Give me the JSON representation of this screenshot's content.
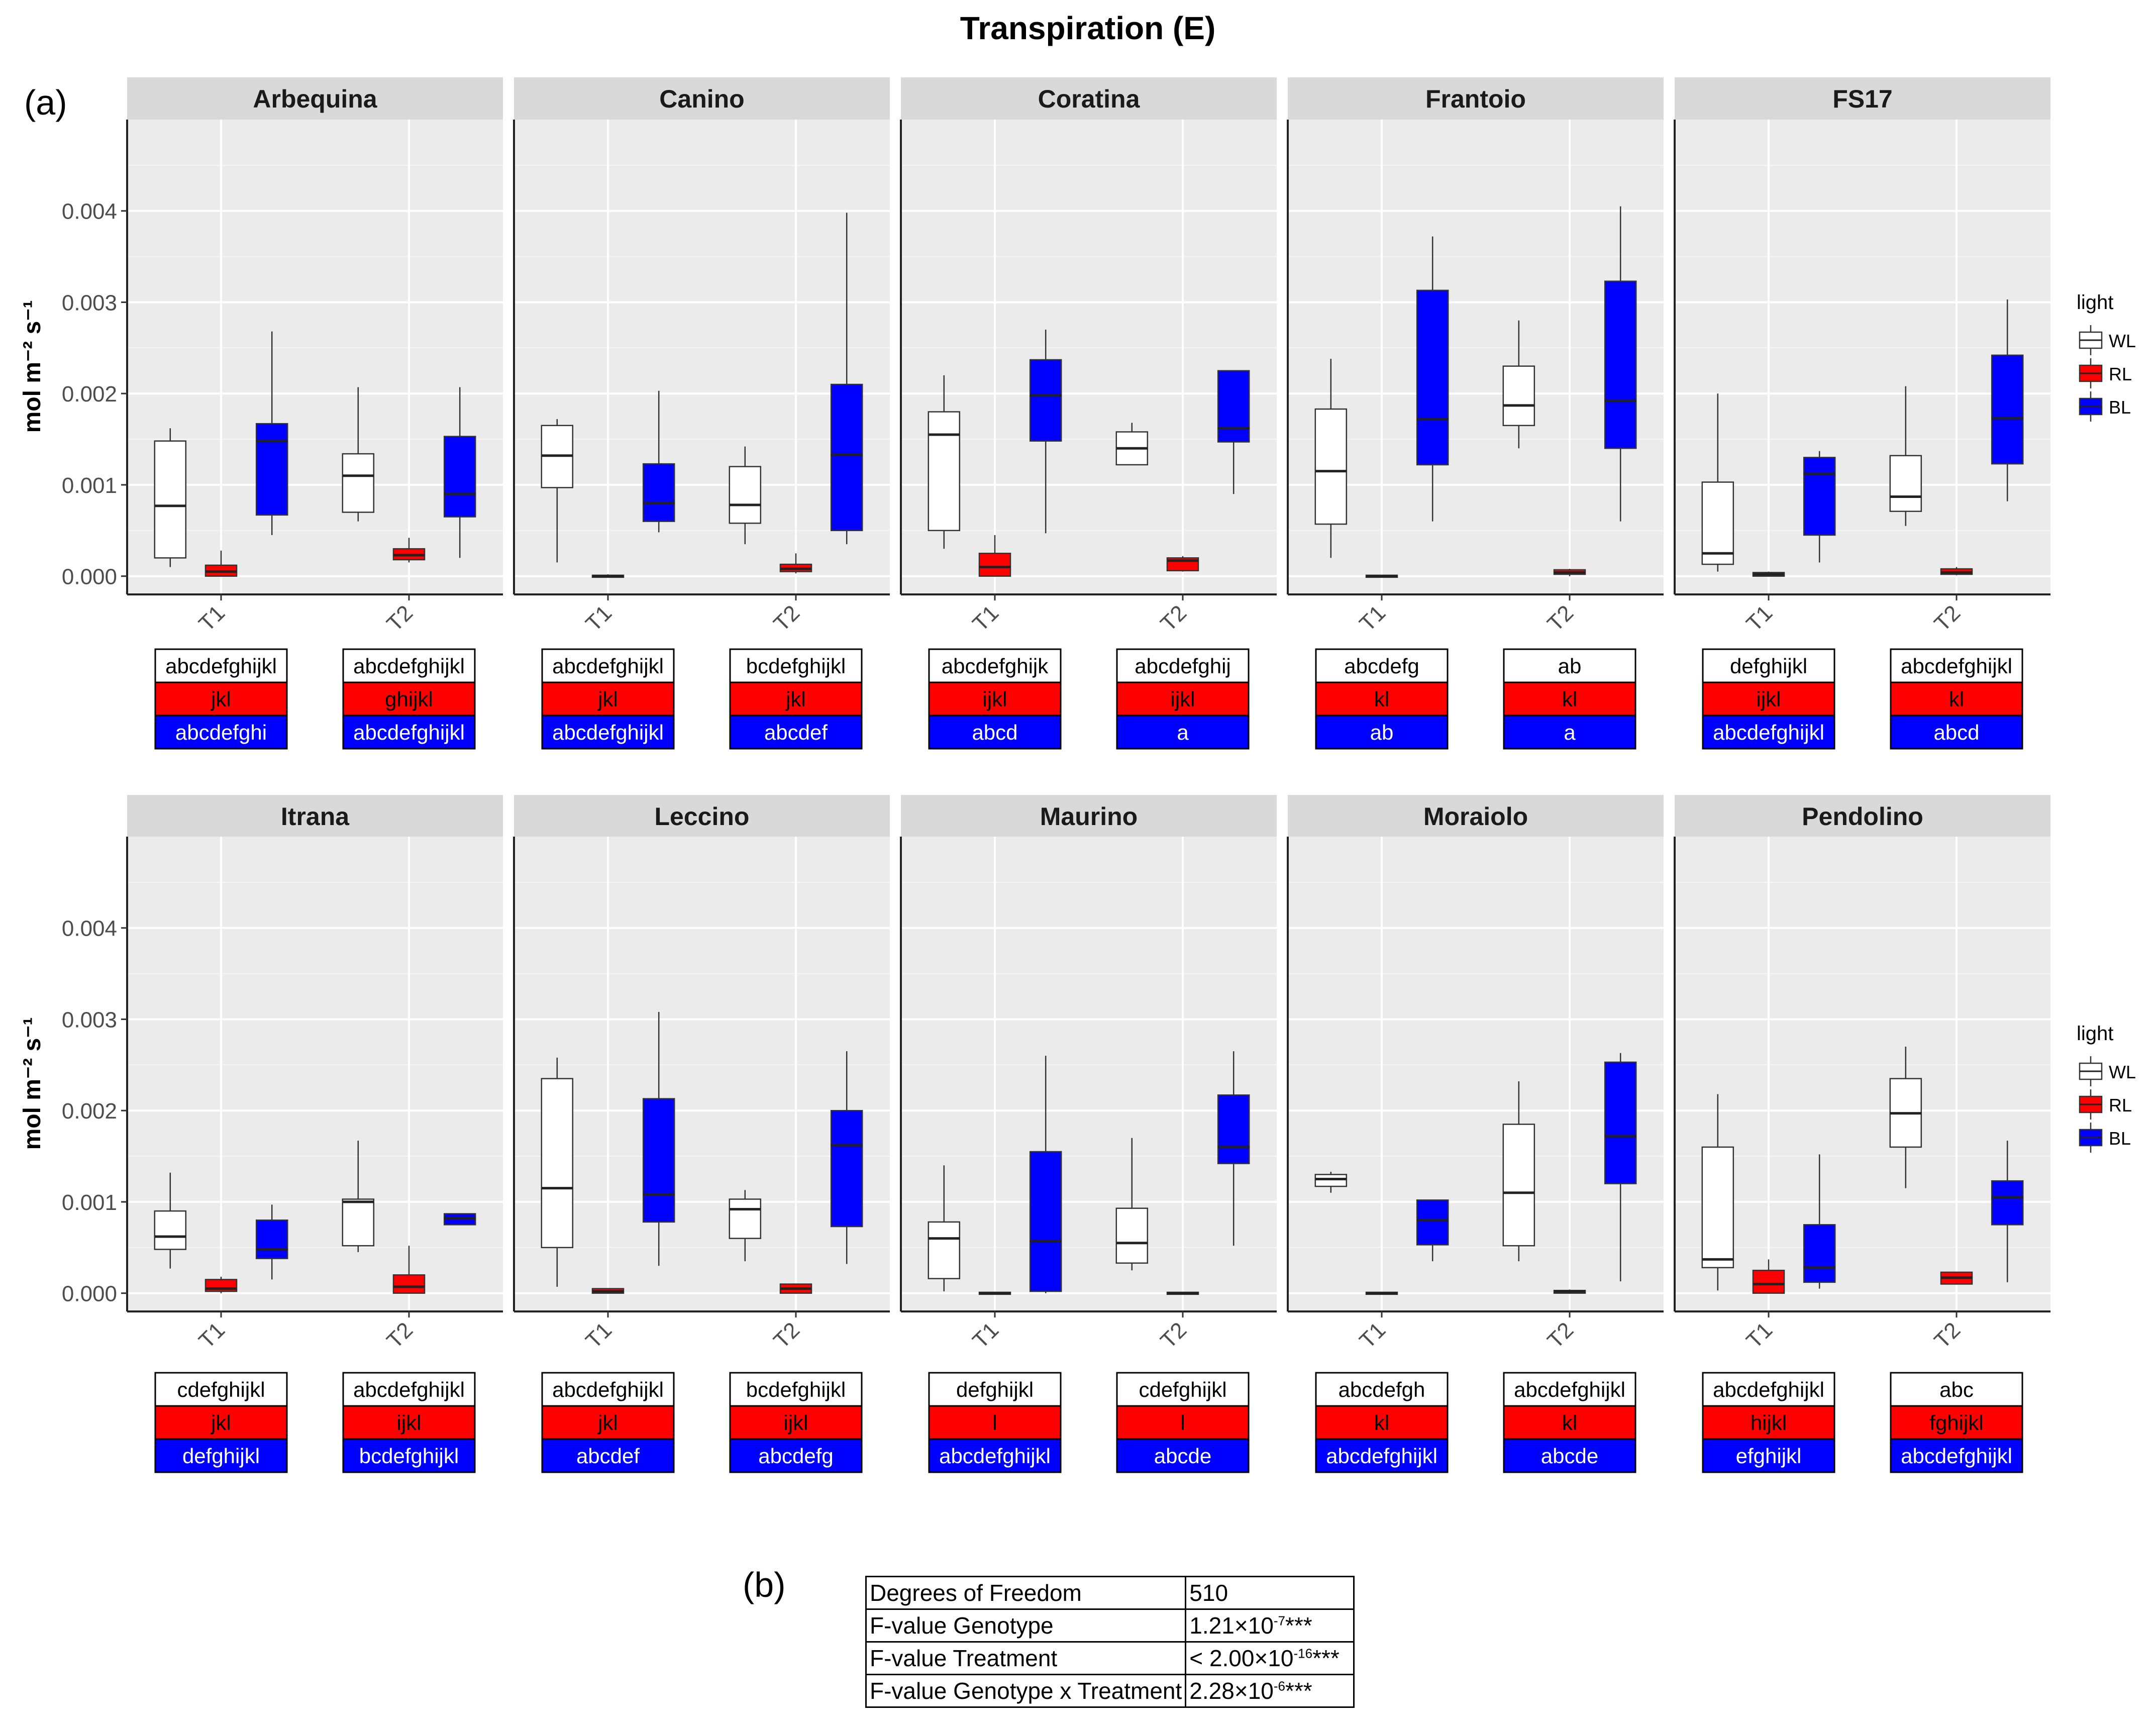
{
  "figure": {
    "title": "Transpiration (E)",
    "label_a": "(a)",
    "label_b": "(b)"
  },
  "colors": {
    "WL": "#ffffff",
    "RL": "#ff0000",
    "BL": "#0000ff",
    "panel_bg": "#ebebeb",
    "strip_bg": "#d9d9d9"
  },
  "chart_data": {
    "type": "boxplot",
    "ylabel": "mol m⁻² s⁻¹",
    "ylim": [
      -0.0002,
      0.005
    ],
    "yticks": [
      "0.000",
      "0.001",
      "0.002",
      "0.003",
      "0.004"
    ],
    "ytick_values": [
      0,
      0.001,
      0.002,
      0.003,
      0.004
    ],
    "x_categories": [
      "T1",
      "T2"
    ],
    "legend": {
      "title": "light",
      "entries": [
        "WL",
        "RL",
        "BL"
      ]
    },
    "panels": [
      {
        "name": "Arbequina",
        "groups": [
          {
            "x": "T1",
            "boxes": [
              {
                "light": "WL",
                "min": 0.0001,
                "q1": 0.0002,
                "median": 0.00077,
                "q3": 0.00148,
                "max": 0.00162
              },
              {
                "light": "RL",
                "min": 0.0,
                "q1": 0.0,
                "median": 5e-05,
                "q3": 0.00012,
                "max": 0.00028
              },
              {
                "light": "BL",
                "min": 0.00045,
                "q1": 0.00067,
                "median": 0.00148,
                "q3": 0.00167,
                "max": 0.00268
              }
            ],
            "letters": [
              "abcdefghijkl",
              "jkl",
              "abcdefghi"
            ]
          },
          {
            "x": "T2",
            "boxes": [
              {
                "light": "WL",
                "min": 0.0006,
                "q1": 0.0007,
                "median": 0.0011,
                "q3": 0.00134,
                "max": 0.00207
              },
              {
                "light": "RL",
                "min": 0.00015,
                "q1": 0.00018,
                "median": 0.00023,
                "q3": 0.0003,
                "max": 0.00042
              },
              {
                "light": "BL",
                "min": 0.0002,
                "q1": 0.00065,
                "median": 0.0009,
                "q3": 0.00153,
                "max": 0.00207
              }
            ],
            "letters": [
              "abcdefghijkl",
              "ghijkl",
              "abcdefghijkl"
            ]
          }
        ]
      },
      {
        "name": "Canino",
        "groups": [
          {
            "x": "T1",
            "boxes": [
              {
                "light": "WL",
                "min": 0.00015,
                "q1": 0.00097,
                "median": 0.00132,
                "q3": 0.00165,
                "max": 0.00172
              },
              {
                "light": "RL",
                "min": 0.0,
                "q1": 0.0,
                "median": 0.0,
                "q3": 1e-05,
                "max": 2e-05
              },
              {
                "light": "BL",
                "min": 0.00048,
                "q1": 0.0006,
                "median": 0.0008,
                "q3": 0.00123,
                "max": 0.00203
              }
            ],
            "letters": [
              "abcdefghijkl",
              "jkl",
              "abcdefghijkl"
            ]
          },
          {
            "x": "T2",
            "boxes": [
              {
                "light": "WL",
                "min": 0.00035,
                "q1": 0.00058,
                "median": 0.00078,
                "q3": 0.0012,
                "max": 0.00142
              },
              {
                "light": "RL",
                "min": 3e-05,
                "q1": 5e-05,
                "median": 8e-05,
                "q3": 0.00013,
                "max": 0.00025
              },
              {
                "light": "BL",
                "min": 0.00035,
                "q1": 0.0005,
                "median": 0.00133,
                "q3": 0.0021,
                "max": 0.00398
              }
            ],
            "letters": [
              "bcdefghijkl",
              "jkl",
              "abcdef"
            ]
          }
        ]
      },
      {
        "name": "Coratina",
        "groups": [
          {
            "x": "T1",
            "boxes": [
              {
                "light": "WL",
                "min": 0.0003,
                "q1": 0.0005,
                "median": 0.00155,
                "q3": 0.0018,
                "max": 0.0022
              },
              {
                "light": "RL",
                "min": 0.0,
                "q1": 0.0,
                "median": 0.0001,
                "q3": 0.00025,
                "max": 0.00045
              },
              {
                "light": "BL",
                "min": 0.00047,
                "q1": 0.00148,
                "median": 0.00198,
                "q3": 0.00237,
                "max": 0.0027
              }
            ],
            "letters": [
              "abcdefghijk",
              "ijkl",
              "abcd"
            ]
          },
          {
            "x": "T2",
            "boxes": [
              {
                "light": "WL",
                "min": 0.00122,
                "q1": 0.00122,
                "median": 0.0014,
                "q3": 0.00158,
                "max": 0.00168
              },
              {
                "light": "RL",
                "min": 5e-05,
                "q1": 6e-05,
                "median": 0.00017,
                "q3": 0.0002,
                "max": 0.00022
              },
              {
                "light": "BL",
                "min": 0.0009,
                "q1": 0.00147,
                "median": 0.00162,
                "q3": 0.00225,
                "max": 0.00225
              }
            ],
            "letters": [
              "abcdefghij",
              "ijkl",
              "a"
            ]
          }
        ]
      },
      {
        "name": "Frantoio",
        "groups": [
          {
            "x": "T1",
            "boxes": [
              {
                "light": "WL",
                "min": 0.0002,
                "q1": 0.00057,
                "median": 0.00115,
                "q3": 0.00183,
                "max": 0.00238
              },
              {
                "light": "RL",
                "min": 0.0,
                "q1": 0.0,
                "median": 0.0,
                "q3": 1e-05,
                "max": 1e-05
              },
              {
                "light": "BL",
                "min": 0.0006,
                "q1": 0.00122,
                "median": 0.00172,
                "q3": 0.00313,
                "max": 0.00372
              }
            ],
            "letters": [
              "abcdefg",
              "kl",
              "ab"
            ]
          },
          {
            "x": "T2",
            "boxes": [
              {
                "light": "WL",
                "min": 0.0014,
                "q1": 0.00165,
                "median": 0.00187,
                "q3": 0.0023,
                "max": 0.0028
              },
              {
                "light": "RL",
                "min": 0.0,
                "q1": 2e-05,
                "median": 4e-05,
                "q3": 7e-05,
                "max": 8e-05
              },
              {
                "light": "BL",
                "min": 0.0006,
                "q1": 0.0014,
                "median": 0.00192,
                "q3": 0.00323,
                "max": 0.00405
              }
            ],
            "letters": [
              "ab",
              "kl",
              "a"
            ]
          }
        ]
      },
      {
        "name": "FS17",
        "groups": [
          {
            "x": "T1",
            "boxes": [
              {
                "light": "WL",
                "min": 5e-05,
                "q1": 0.00013,
                "median": 0.00025,
                "q3": 0.00103,
                "max": 0.002
              },
              {
                "light": "RL",
                "min": 0.0,
                "q1": 0.0,
                "median": 2e-05,
                "q3": 4e-05,
                "max": 5e-05
              },
              {
                "light": "BL",
                "min": 0.00015,
                "q1": 0.00045,
                "median": 0.00112,
                "q3": 0.0013,
                "max": 0.00137
              }
            ],
            "letters": [
              "defghijkl",
              "ijkl",
              "abcdefghijkl"
            ]
          },
          {
            "x": "T2",
            "boxes": [
              {
                "light": "WL",
                "min": 0.00055,
                "q1": 0.00071,
                "median": 0.00087,
                "q3": 0.00132,
                "max": 0.00208
              },
              {
                "light": "RL",
                "min": 1e-05,
                "q1": 2e-05,
                "median": 4e-05,
                "q3": 8e-05,
                "max": 0.0001
              },
              {
                "light": "BL",
                "min": 0.00082,
                "q1": 0.00123,
                "median": 0.00173,
                "q3": 0.00242,
                "max": 0.00303
              }
            ],
            "letters": [
              "abcdefghijkl",
              "kl",
              "abcd"
            ]
          }
        ]
      },
      {
        "name": "Itrana",
        "groups": [
          {
            "x": "T1",
            "boxes": [
              {
                "light": "WL",
                "min": 0.00027,
                "q1": 0.00048,
                "median": 0.00062,
                "q3": 0.0009,
                "max": 0.00132
              },
              {
                "light": "RL",
                "min": 0.0,
                "q1": 2e-05,
                "median": 5e-05,
                "q3": 0.00015,
                "max": 0.00018
              },
              {
                "light": "BL",
                "min": 0.00015,
                "q1": 0.00038,
                "median": 0.00048,
                "q3": 0.0008,
                "max": 0.00097
              }
            ],
            "letters": [
              "cdefghijkl",
              "jkl",
              "defghijkl"
            ]
          },
          {
            "x": "T2",
            "boxes": [
              {
                "light": "WL",
                "min": 0.00045,
                "q1": 0.00052,
                "median": 0.001,
                "q3": 0.00103,
                "max": 0.00167
              },
              {
                "light": "RL",
                "min": 0.0,
                "q1": 0.0,
                "median": 7e-05,
                "q3": 0.0002,
                "max": 0.00052
              },
              {
                "light": "BL",
                "min": 0.00075,
                "q1": 0.00075,
                "median": 0.00082,
                "q3": 0.00087,
                "max": 0.00087
              }
            ],
            "letters": [
              "abcdefghijkl",
              "ijkl",
              "bcdefghijkl"
            ]
          }
        ]
      },
      {
        "name": "Leccino",
        "groups": [
          {
            "x": "T1",
            "boxes": [
              {
                "light": "WL",
                "min": 7e-05,
                "q1": 0.0005,
                "median": 0.00115,
                "q3": 0.00235,
                "max": 0.00258
              },
              {
                "light": "RL",
                "min": 0.0,
                "q1": 0.0,
                "median": 2e-05,
                "q3": 5e-05,
                "max": 5e-05
              },
              {
                "light": "BL",
                "min": 0.0003,
                "q1": 0.00078,
                "median": 0.00108,
                "q3": 0.00213,
                "max": 0.00308
              }
            ],
            "letters": [
              "abcdefghijkl",
              "jkl",
              "abcdef"
            ]
          },
          {
            "x": "T2",
            "boxes": [
              {
                "light": "WL",
                "min": 0.00035,
                "q1": 0.0006,
                "median": 0.00092,
                "q3": 0.00103,
                "max": 0.00113
              },
              {
                "light": "RL",
                "min": 0.0,
                "q1": 0.0,
                "median": 5e-05,
                "q3": 0.0001,
                "max": 0.0001
              },
              {
                "light": "BL",
                "min": 0.00032,
                "q1": 0.00073,
                "median": 0.00162,
                "q3": 0.002,
                "max": 0.00265
              }
            ],
            "letters": [
              "bcdefghijkl",
              "ijkl",
              "abcdefg"
            ]
          }
        ]
      },
      {
        "name": "Maurino",
        "groups": [
          {
            "x": "T1",
            "boxes": [
              {
                "light": "WL",
                "min": 2e-05,
                "q1": 0.00016,
                "median": 0.0006,
                "q3": 0.00078,
                "max": 0.0014
              },
              {
                "light": "RL",
                "min": 0.0,
                "q1": 0.0,
                "median": 0.0,
                "q3": 1e-05,
                "max": 1e-05
              },
              {
                "light": "BL",
                "min": 0.0,
                "q1": 2e-05,
                "median": 0.00057,
                "q3": 0.00155,
                "max": 0.0026
              }
            ],
            "letters": [
              "defghijkl",
              "l",
              "abcdefghijkl"
            ]
          },
          {
            "x": "T2",
            "boxes": [
              {
                "light": "WL",
                "min": 0.00025,
                "q1": 0.00033,
                "median": 0.00055,
                "q3": 0.00093,
                "max": 0.0017
              },
              {
                "light": "RL",
                "min": 0.0,
                "q1": 0.0,
                "median": 0.0,
                "q3": 1e-05,
                "max": 1e-05
              },
              {
                "light": "BL",
                "min": 0.00052,
                "q1": 0.00142,
                "median": 0.0016,
                "q3": 0.00217,
                "max": 0.00265
              }
            ],
            "letters": [
              "cdefghijkl",
              "l",
              "abcde"
            ]
          }
        ]
      },
      {
        "name": "Moraiolo",
        "groups": [
          {
            "x": "T1",
            "boxes": [
              {
                "light": "WL",
                "min": 0.0011,
                "q1": 0.00117,
                "median": 0.00125,
                "q3": 0.0013,
                "max": 0.00133
              },
              {
                "light": "RL",
                "min": 0.0,
                "q1": 0.0,
                "median": 0.0,
                "q3": 1e-05,
                "max": 1e-05
              },
              {
                "light": "BL",
                "min": 0.00035,
                "q1": 0.00053,
                "median": 0.0008,
                "q3": 0.00102,
                "max": 0.00102
              }
            ],
            "letters": [
              "abcdefgh",
              "kl",
              "abcdefghijkl"
            ]
          },
          {
            "x": "T2",
            "boxes": [
              {
                "light": "WL",
                "min": 0.00035,
                "q1": 0.00052,
                "median": 0.0011,
                "q3": 0.00185,
                "max": 0.00232
              },
              {
                "light": "RL",
                "min": 0.0,
                "q1": 0.0,
                "median": 2e-05,
                "q3": 3e-05,
                "max": 4e-05
              },
              {
                "light": "BL",
                "min": 0.00013,
                "q1": 0.0012,
                "median": 0.00172,
                "q3": 0.00253,
                "max": 0.00263
              }
            ],
            "letters": [
              "abcdefghijkl",
              "kl",
              "abcde"
            ]
          }
        ]
      },
      {
        "name": "Pendolino",
        "groups": [
          {
            "x": "T1",
            "boxes": [
              {
                "light": "WL",
                "min": 3e-05,
                "q1": 0.00028,
                "median": 0.00037,
                "q3": 0.0016,
                "max": 0.00218
              },
              {
                "light": "RL",
                "min": 0.0,
                "q1": 0.0,
                "median": 0.0001,
                "q3": 0.00025,
                "max": 0.00037
              },
              {
                "light": "BL",
                "min": 5e-05,
                "q1": 0.00012,
                "median": 0.00028,
                "q3": 0.00075,
                "max": 0.00152
              }
            ],
            "letters": [
              "abcdefghijkl",
              "hijkl",
              "efghijkl"
            ]
          },
          {
            "x": "T2",
            "boxes": [
              {
                "light": "WL",
                "min": 0.00115,
                "q1": 0.0016,
                "median": 0.00197,
                "q3": 0.00235,
                "max": 0.0027
              },
              {
                "light": "RL",
                "min": 0.0001,
                "q1": 0.0001,
                "median": 0.00017,
                "q3": 0.00023,
                "max": 0.00023
              },
              {
                "light": "BL",
                "min": 0.00012,
                "q1": 0.00075,
                "median": 0.00105,
                "q3": 0.00123,
                "max": 0.00167
              }
            ],
            "letters": [
              "abc",
              "fghijkl",
              "abcdefghijkl"
            ]
          }
        ]
      }
    ]
  },
  "anova_table": {
    "rows": [
      {
        "label": "Degrees of Freedom",
        "value": "510",
        "exp": "",
        "stars": ""
      },
      {
        "label": "F-value Genotype",
        "value": "1.21×10",
        "exp": "-7",
        "stars": "***"
      },
      {
        "label": "F-value Treatment",
        "value": "< 2.00×10",
        "exp": "-16",
        "stars": "***"
      },
      {
        "label": "F-value Genotype x Treatment",
        "value": "2.28×10",
        "exp": "-6",
        "stars": "***"
      }
    ]
  }
}
